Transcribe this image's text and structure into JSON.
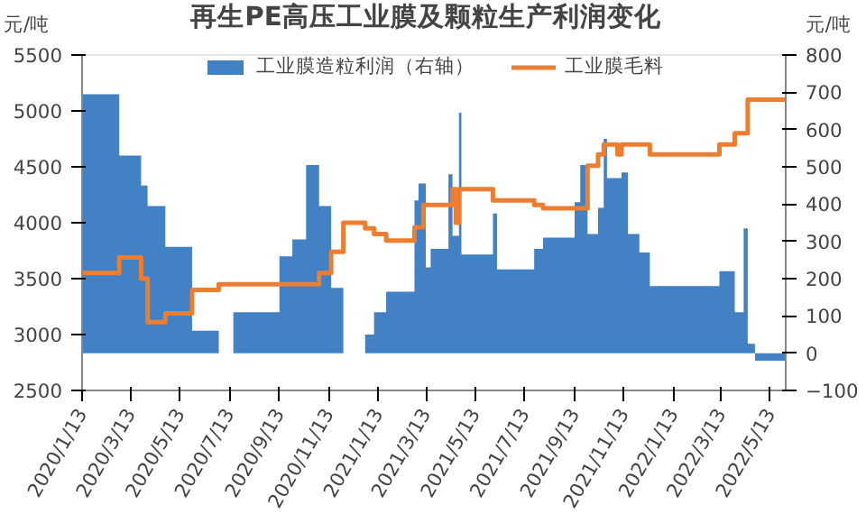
{
  "chart_data": {
    "type": "area",
    "title": "再生PE高压工业膜及颗粒生产利润变化",
    "ylabel": "元/吨",
    "y2label": "元/吨",
    "xlim": [
      "2020-01-13",
      "2022-06-01"
    ],
    "xticks": [
      {
        "value": "2020-01-13",
        "label": "2020/1/13"
      },
      {
        "value": "2020-03-13",
        "label": "2020/3/13"
      },
      {
        "value": "2020-05-13",
        "label": "2020/5/13"
      },
      {
        "value": "2020-07-13",
        "label": "2020/7/13"
      },
      {
        "value": "2020-09-13",
        "label": "2020/9/13"
      },
      {
        "value": "2020-11-13",
        "label": "2020/11/13"
      },
      {
        "value": "2021-01-13",
        "label": "2021/1/13"
      },
      {
        "value": "2021-03-13",
        "label": "2021/3/13"
      },
      {
        "value": "2021-05-13",
        "label": "2021/5/13"
      },
      {
        "value": "2021-07-13",
        "label": "2021/7/13"
      },
      {
        "value": "2021-09-13",
        "label": "2021/9/13"
      },
      {
        "value": "2021-11-13",
        "label": "2021/11/13"
      },
      {
        "value": "2022-01-13",
        "label": "2022/1/13"
      },
      {
        "value": "2022-03-13",
        "label": "2022/3/13"
      },
      {
        "value": "2022-05-13",
        "label": "2022/5/13"
      }
    ],
    "ylim": [
      2500,
      5500
    ],
    "yticks": [
      2500,
      3000,
      3500,
      4000,
      4500,
      5000,
      5500
    ],
    "y2lim": [
      -100,
      800
    ],
    "y2ticks": [
      -100,
      0,
      100,
      200,
      300,
      400,
      500,
      600,
      700,
      800
    ],
    "legend": "top",
    "series": [
      {
        "name": "工业膜造粒利润（右轴）",
        "axis": "y2",
        "color": "#4281c4",
        "x": [
          "2020-01-13",
          "2020-02-28",
          "2020-02-28",
          "2020-03-26",
          "2020-03-26",
          "2020-04-03",
          "2020-04-03",
          "2020-04-25",
          "2020-04-25",
          "2020-05-28",
          "2020-05-28",
          "2020-06-30",
          "2020-06-30",
          "2020-07-18",
          "2020-07-18",
          "2020-09-13",
          "2020-09-13",
          "2020-09-29",
          "2020-09-29",
          "2020-10-16",
          "2020-10-16",
          "2020-11-01",
          "2020-11-01",
          "2020-11-16",
          "2020-11-16",
          "2020-12-01",
          "2020-12-01",
          "2020-12-28",
          "2020-12-28",
          "2021-01-08",
          "2021-01-08",
          "2021-01-23",
          "2021-01-23",
          "2021-02-27",
          "2021-02-27",
          "2021-03-04",
          "2021-03-04",
          "2021-03-13",
          "2021-03-13",
          "2021-03-19",
          "2021-03-19",
          "2021-04-10",
          "2021-04-10",
          "2021-04-15",
          "2021-04-15",
          "2021-04-23",
          "2021-04-23",
          "2021-04-26",
          "2021-04-26",
          "2021-06-04",
          "2021-06-04",
          "2021-06-09",
          "2021-06-09",
          "2021-07-25",
          "2021-07-25",
          "2021-08-05",
          "2021-08-05",
          "2021-09-13",
          "2021-09-13",
          "2021-09-20",
          "2021-09-20",
          "2021-09-29",
          "2021-09-29",
          "2021-10-12",
          "2021-10-12",
          "2021-10-19",
          "2021-10-19",
          "2021-10-23",
          "2021-10-23",
          "2021-11-10",
          "2021-11-10",
          "2021-11-18",
          "2021-11-18",
          "2021-12-02",
          "2021-12-02",
          "2021-12-15",
          "2021-12-15",
          "2022-03-11",
          "2022-03-11",
          "2022-03-30",
          "2022-03-30",
          "2022-04-10",
          "2022-04-10",
          "2022-04-15",
          "2022-04-15",
          "2022-04-24",
          "2022-04-24",
          "2022-06-01"
        ],
        "values": [
          695,
          695,
          530,
          530,
          450,
          450,
          395,
          395,
          285,
          285,
          60,
          60,
          0,
          0,
          110,
          110,
          260,
          260,
          305,
          305,
          505,
          505,
          395,
          395,
          175,
          175,
          0,
          0,
          50,
          50,
          110,
          110,
          165,
          165,
          410,
          410,
          455,
          455,
          230,
          230,
          280,
          280,
          480,
          480,
          315,
          315,
          645,
          645,
          265,
          265,
          375,
          375,
          225,
          225,
          280,
          280,
          310,
          310,
          405,
          405,
          505,
          505,
          320,
          320,
          390,
          390,
          575,
          575,
          470,
          470,
          485,
          485,
          320,
          320,
          270,
          270,
          180,
          180,
          220,
          220,
          110,
          110,
          335,
          335,
          25,
          25,
          -20,
          -20
        ]
      },
      {
        "name": "工业膜毛料",
        "type": "step",
        "color": "#ed7d31",
        "x": [
          "2020-01-13",
          "2020-02-28",
          "2020-03-26",
          "2020-04-03",
          "2020-04-25",
          "2020-05-28",
          "2020-06-30",
          "2020-11-01",
          "2020-11-16",
          "2020-12-01",
          "2020-12-28",
          "2021-01-08",
          "2021-01-23",
          "2021-02-27",
          "2021-03-10",
          "2021-04-15",
          "2021-04-19",
          "2021-04-23",
          "2021-06-04",
          "2021-07-25",
          "2021-08-05",
          "2021-09-29",
          "2021-10-12",
          "2021-10-19",
          "2021-11-05",
          "2021-11-10",
          "2021-12-15",
          "2022-03-11",
          "2022-03-30",
          "2022-04-15",
          "2022-06-01"
        ],
        "values": [
          3550,
          3690,
          3500,
          3110,
          3190,
          3400,
          3450,
          3550,
          3740,
          4000,
          3950,
          3900,
          3840,
          3960,
          4160,
          4300,
          4000,
          4300,
          4200,
          4160,
          4130,
          4510,
          4610,
          4700,
          4610,
          4700,
          4610,
          4700,
          4800,
          5100,
          5100
        ]
      }
    ]
  }
}
